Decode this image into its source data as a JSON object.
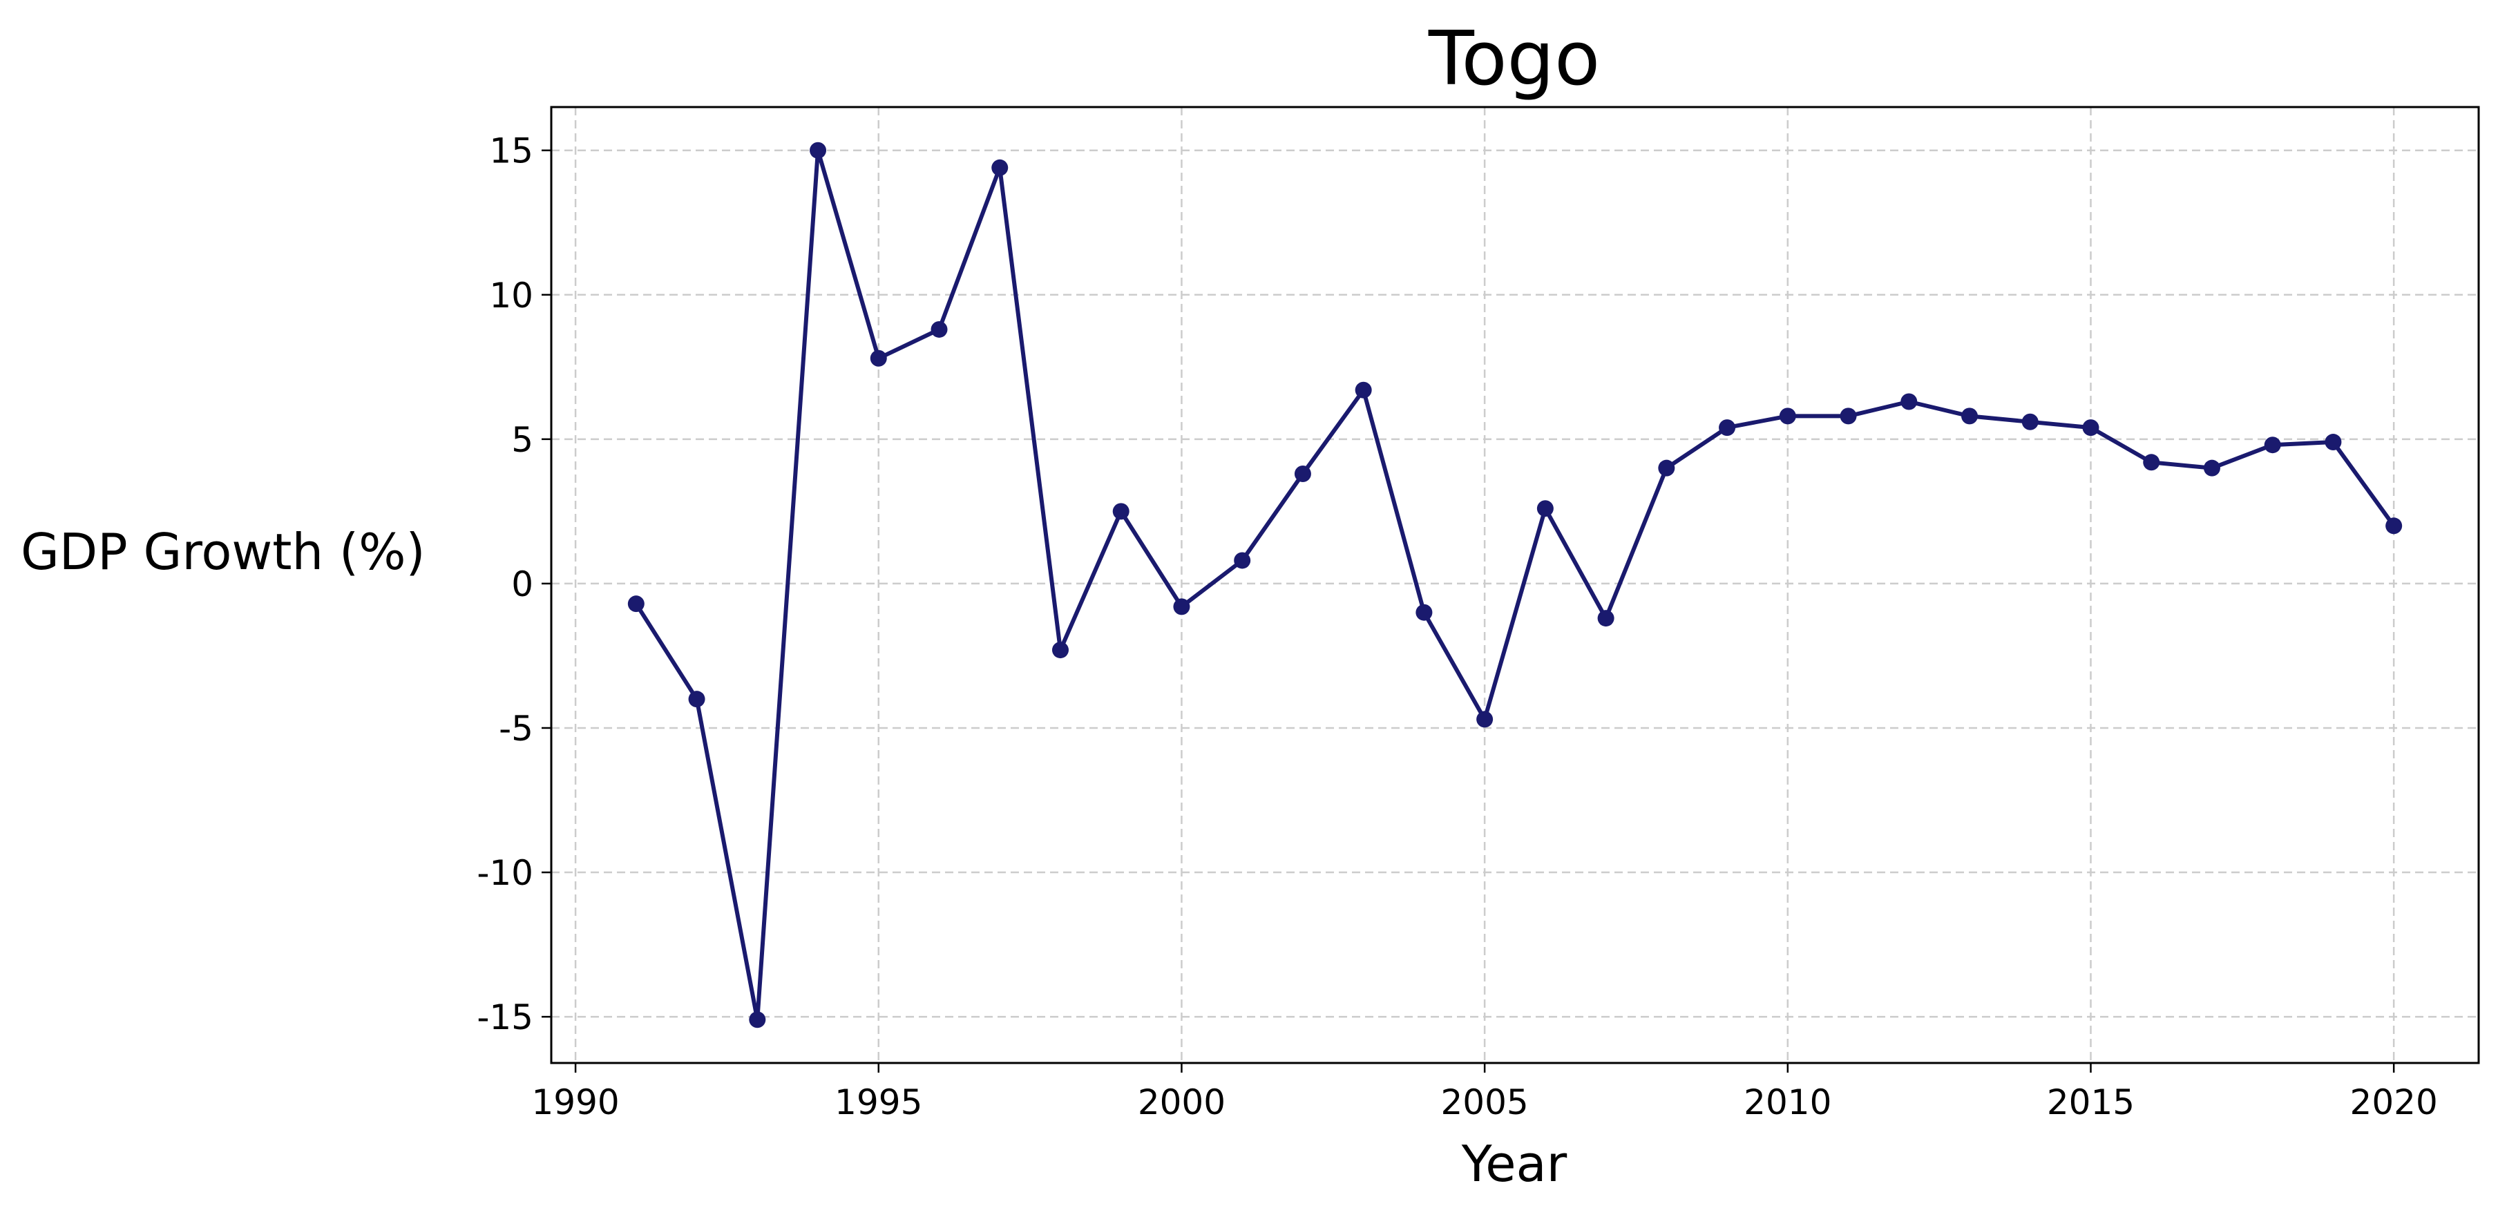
{
  "chart_data": {
    "type": "line",
    "title": "Togo",
    "xlabel": "Year",
    "ylabel": "GDP Growth (%)",
    "xlim": [
      1989.6,
      2021.4
    ],
    "ylim": [
      -16.6,
      16.5
    ],
    "xticks": [
      1990,
      1995,
      2000,
      2005,
      2010,
      2015,
      2020
    ],
    "yticks": [
      -15,
      -10,
      -5,
      0,
      5,
      10,
      15
    ],
    "ytick_labels": [
      "-15",
      "-10",
      "-5",
      "0",
      "5",
      "10",
      "15"
    ],
    "grid": true,
    "legend": "none",
    "colors": {
      "line": "#1a1a6e",
      "marker": "#1a1a6e",
      "grid": "#cccccc"
    },
    "series": [
      {
        "x": [
          1991,
          1992,
          1993,
          1994,
          1995,
          1996,
          1997,
          1998,
          1999,
          2000,
          2001,
          2002,
          2003,
          2004,
          2005,
          2006,
          2007,
          2008,
          2009,
          2010,
          2011,
          2012,
          2013,
          2014,
          2015,
          2016,
          2017,
          2018,
          2019,
          2020
        ],
        "values": [
          -0.7,
          -4.0,
          -15.1,
          15.0,
          7.8,
          8.8,
          14.4,
          -2.3,
          2.5,
          -0.8,
          0.8,
          3.8,
          6.7,
          -1.0,
          -4.7,
          2.6,
          -1.2,
          4.0,
          5.4,
          5.8,
          5.8,
          6.3,
          5.8,
          5.6,
          5.4,
          4.2,
          4.0,
          4.8,
          4.9,
          2.0
        ]
      }
    ]
  }
}
